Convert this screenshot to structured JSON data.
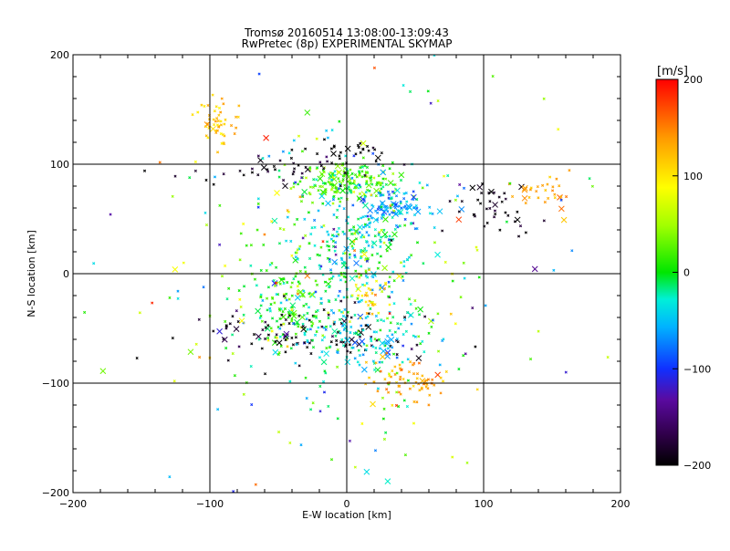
{
  "chart_data": {
    "type": "scatter",
    "title_line1": "Tromsø 20160514 13:08:00-13:09:43",
    "title_line2": "RwPretec (8p) EXPERIMENTAL SKYMAP",
    "xlabel": "E-W location [km]",
    "ylabel": "N-S location [km]",
    "xlim": [
      -200,
      200
    ],
    "ylim": [
      -200,
      200
    ],
    "x_ticks": [
      -200,
      -100,
      0,
      100,
      200
    ],
    "y_ticks": [
      -200,
      -100,
      0,
      100,
      200
    ],
    "x_tick_labels": [
      "−200",
      "−100",
      "0",
      "100",
      "200"
    ],
    "y_tick_labels": [
      "−200",
      "−100",
      "0",
      "100",
      "200"
    ],
    "grid_lines": [
      -100,
      0,
      100
    ],
    "colorbar": {
      "label": "[m/s]",
      "range": [
        -200,
        200
      ],
      "ticks": [
        200,
        100,
        0,
        -100,
        -200
      ],
      "tick_labels": [
        "200",
        "100",
        "0",
        "−100",
        "−200"
      ]
    },
    "clusters": [
      {
        "cx": 0,
        "cy": 85,
        "sx": 20,
        "sy": 9,
        "v": 20,
        "vs": 25,
        "n": 170
      },
      {
        "cx": 35,
        "cy": 60,
        "sx": 14,
        "sy": 10,
        "v": -60,
        "vs": 20,
        "n": 110
      },
      {
        "cx": 5,
        "cy": 20,
        "sx": 18,
        "sy": 22,
        "v": -25,
        "vs": 25,
        "n": 170
      },
      {
        "cx": -5,
        "cy": 0,
        "sx": 45,
        "sy": 75,
        "v": 0,
        "vs": 55,
        "n": 260
      },
      {
        "cx": -40,
        "cy": -30,
        "sx": 15,
        "sy": 18,
        "v": 5,
        "vs": 25,
        "n": 110
      },
      {
        "cx": -20,
        "cy": -55,
        "sx": 45,
        "sy": 12,
        "v": -190,
        "vs": 15,
        "n": 100
      },
      {
        "cx": 10,
        "cy": -60,
        "sx": 25,
        "sy": 15,
        "v": -35,
        "vs": 25,
        "n": 120
      },
      {
        "cx": 45,
        "cy": -100,
        "sx": 14,
        "sy": 10,
        "v": 135,
        "vs": 15,
        "n": 70
      },
      {
        "cx": -95,
        "cy": 140,
        "sx": 8,
        "sy": 10,
        "v": 120,
        "vs": 15,
        "n": 50
      },
      {
        "cx": -55,
        "cy": 95,
        "sx": 35,
        "sy": 8,
        "v": -190,
        "vs": 15,
        "n": 40
      },
      {
        "cx": 110,
        "cy": 60,
        "sx": 15,
        "sy": 12,
        "v": -195,
        "vs": 12,
        "n": 40
      },
      {
        "cx": 145,
        "cy": 75,
        "sx": 12,
        "sy": 10,
        "v": 135,
        "vs": 15,
        "n": 30
      },
      {
        "cx": 5,
        "cy": 112,
        "sx": 15,
        "sy": 5,
        "v": -210,
        "vs": 8,
        "n": 25
      },
      {
        "cx": 15,
        "cy": -15,
        "sx": 8,
        "sy": 10,
        "v": 110,
        "vs": 20,
        "n": 35
      },
      {
        "cx": 0,
        "cy": 0,
        "sx": 95,
        "sy": 95,
        "v": 0,
        "vs": 90,
        "n": 160
      }
    ]
  }
}
